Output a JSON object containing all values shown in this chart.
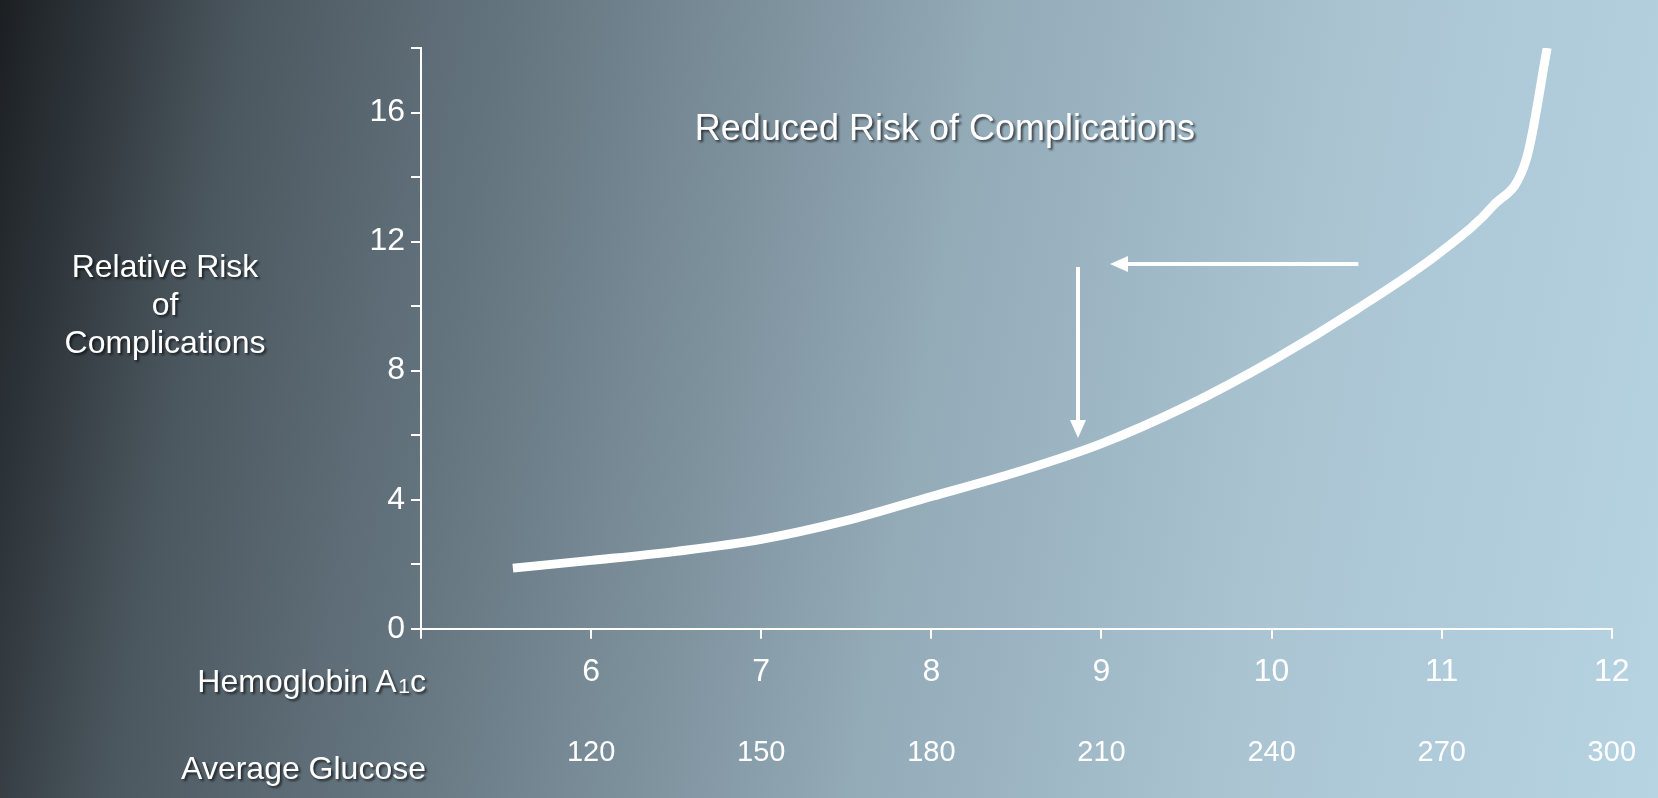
{
  "chart_data": {
    "type": "line",
    "xlabel": "Hemoglobin A$_{1}$c",
    "x2label": "Average Glucose",
    "ylabel": "Relative Risk\nof\nComplications",
    "x": [
      5.54,
      6,
      6.5,
      7,
      7.5,
      8,
      8.5,
      9,
      9.5,
      10,
      10.5,
      11,
      11.3,
      11.5,
      11.62
    ],
    "series": [
      {
        "color": "#ffffff",
        "values": [
          1.88,
          2.12,
          2.4,
          2.77,
          3.35,
          4.1,
          4.85,
          5.74,
          6.9,
          8.3,
          9.9,
          11.7,
          13.1,
          14.6,
          18
        ]
      }
    ],
    "xlim": [
      5,
      12
    ],
    "xticks": [
      {
        "value": 5,
        "label": null
      },
      6,
      7,
      8,
      9,
      10,
      11,
      12
    ],
    "x2lim": [
      90,
      300
    ],
    "x2ticks": [
      120,
      150,
      180,
      210,
      240,
      270,
      300
    ],
    "ylim": [
      0,
      18
    ],
    "yticks": [
      0,
      {
        "value": 2,
        "label": null
      },
      4,
      {
        "value": 6,
        "label": null
      },
      8,
      {
        "value": 10,
        "label": null
      },
      12,
      {
        "value": 14,
        "label": null
      },
      16,
      {
        "value": 18,
        "label": null
      }
    ],
    "annotations": [
      "Reduced Risk of Complications"
    ],
    "grid": false,
    "legend": false,
    "marker": "none",
    "line_style": "solid"
  }
}
